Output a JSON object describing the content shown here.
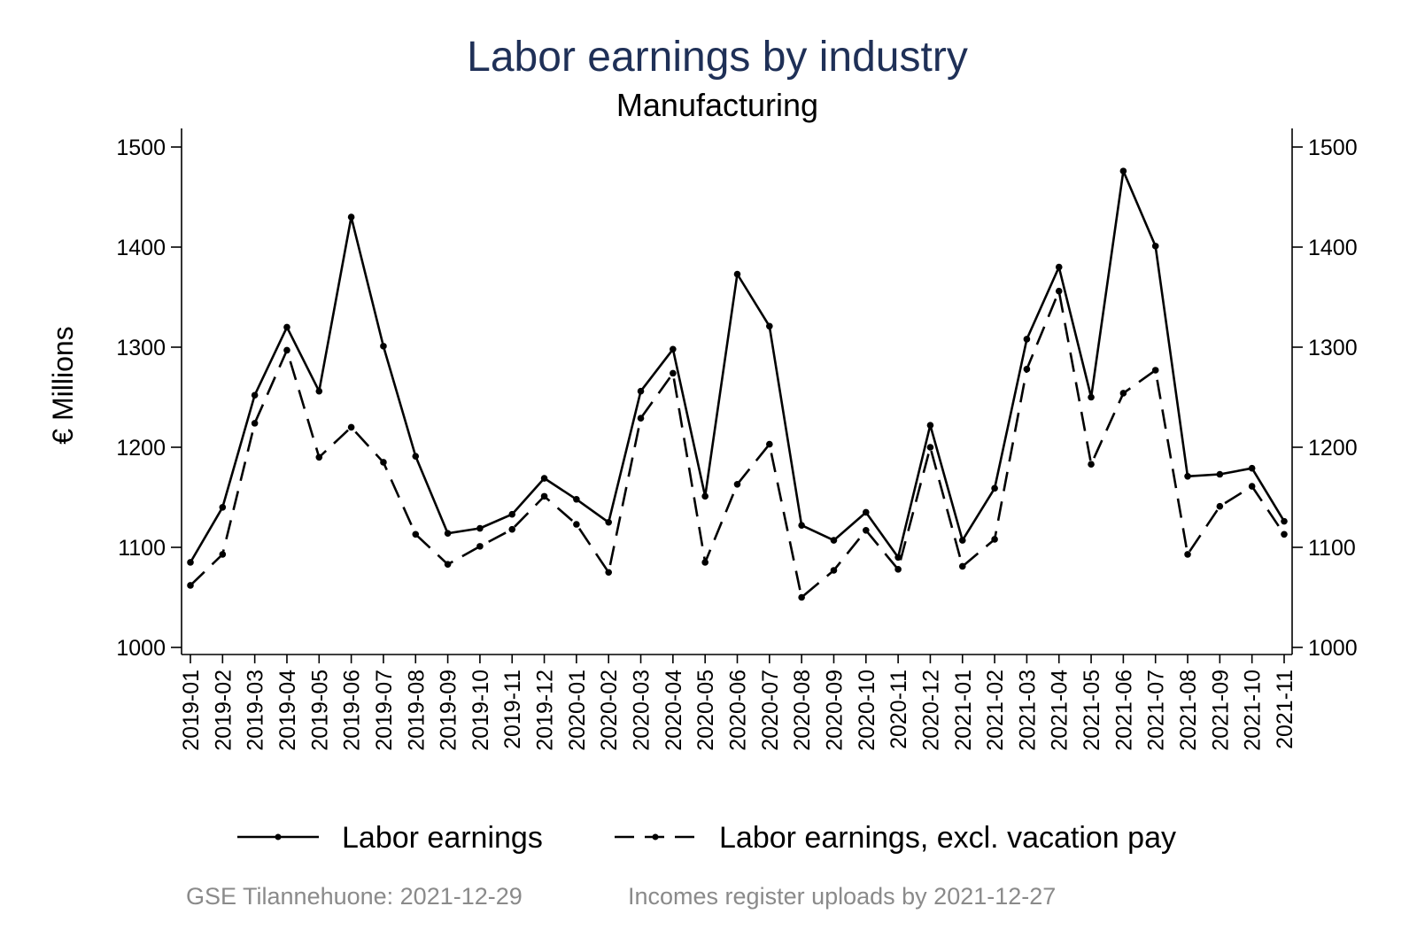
{
  "chart_data": {
    "type": "line",
    "title": "Labor earnings by industry",
    "subtitle": "Manufacturing",
    "ylabel": "€ Millions",
    "xlabel": "",
    "ylim": [
      1000,
      1500
    ],
    "yticks": [
      1000,
      1100,
      1200,
      1300,
      1400,
      1500
    ],
    "y_axis_right_duplicate": true,
    "grid": false,
    "legend_position": "bottom",
    "categories": [
      "2019-01",
      "2019-02",
      "2019-03",
      "2019-04",
      "2019-05",
      "2019-06",
      "2019-07",
      "2019-08",
      "2019-09",
      "2019-10",
      "2019-11",
      "2019-12",
      "2020-01",
      "2020-02",
      "2020-03",
      "2020-04",
      "2020-05",
      "2020-06",
      "2020-07",
      "2020-08",
      "2020-09",
      "2020-10",
      "2020-11",
      "2020-12",
      "2021-01",
      "2021-02",
      "2021-03",
      "2021-04",
      "2021-05",
      "2021-06",
      "2021-07",
      "2021-08",
      "2021-09",
      "2021-10",
      "2021-11"
    ],
    "series": [
      {
        "name": "Labor earnings",
        "style": "solid",
        "values": [
          1085,
          1140,
          1252,
          1320,
          1256,
          1430,
          1301,
          1191,
          1114,
          1119,
          1133,
          1169,
          1148,
          1125,
          1256,
          1298,
          1151,
          1373,
          1321,
          1122,
          1107,
          1135,
          1090,
          1222,
          1107,
          1159,
          1308,
          1380,
          1250,
          1476,
          1401,
          1171,
          1173,
          1179,
          1126
        ]
      },
      {
        "name": "Labor earnings, excl. vacation pay",
        "style": "dashed",
        "values": [
          1062,
          1093,
          1224,
          1297,
          1190,
          1220,
          1185,
          1113,
          1083,
          1101,
          1118,
          1151,
          1123,
          1075,
          1229,
          1274,
          1085,
          1163,
          1203,
          1050,
          1077,
          1117,
          1078,
          1200,
          1081,
          1108,
          1278,
          1356,
          1183,
          1254,
          1277,
          1093,
          1141,
          1161,
          1113
        ]
      }
    ]
  },
  "footer": {
    "source_left": "GSE Tilannehuone: 2021-12-29",
    "source_right": "Incomes register uploads by 2021-12-27"
  }
}
